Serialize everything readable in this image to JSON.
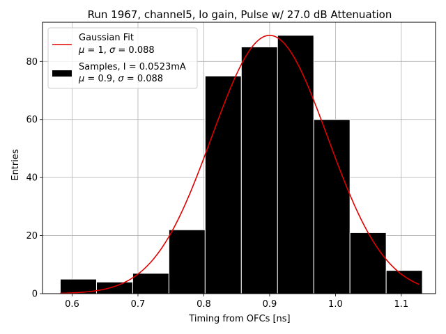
{
  "chart_data": {
    "type": "bar",
    "title": "Run 1967, channel5, lo gain, Pulse w/ 27.0 dB Attenuation",
    "xlabel": "Timing from OFCs [ns]",
    "ylabel": "Entries",
    "xlim": [
      0.555,
      1.152
    ],
    "ylim": [
      0,
      93.5
    ],
    "grid": true,
    "legend_position": "top-left",
    "x_ticks": [
      0.6,
      0.7,
      0.8,
      0.9,
      1.0,
      1.1
    ],
    "x_tick_labels": [
      "0.6",
      "0.7",
      "0.8",
      "0.9",
      "1.0",
      "1.1"
    ],
    "y_ticks": [
      0,
      20,
      40,
      60,
      80
    ],
    "y_tick_labels": [
      "0",
      "20",
      "40",
      "60",
      "80"
    ],
    "bins": {
      "edges": [
        0.582,
        0.637,
        0.692,
        0.747,
        0.802,
        0.857,
        0.912,
        0.967,
        1.022,
        1.077,
        1.132
      ],
      "counts": [
        5,
        4,
        7,
        22,
        75,
        85,
        89,
        60,
        21,
        8
      ],
      "color": "#000000"
    },
    "fit": {
      "mean": 0.9,
      "sigma": 0.088,
      "amplitude": 89,
      "x_range": [
        0.582,
        1.127
      ],
      "color": "#e00000"
    },
    "legend": [
      {
        "kind": "line",
        "line1": "Gaussian Fit",
        "mu": "1",
        "sigma": "0.088",
        "color": "#e00000"
      },
      {
        "kind": "patch",
        "line1": "Samples, I = 0.0523mA",
        "mu": "0.9",
        "sigma": "0.088",
        "color": "#000000"
      }
    ]
  }
}
